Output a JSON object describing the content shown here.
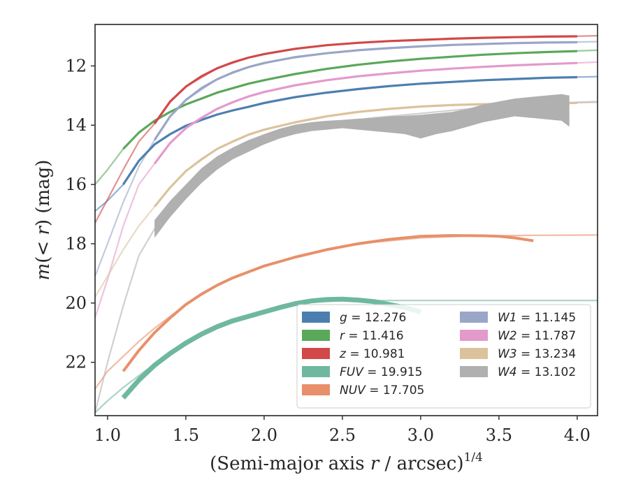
{
  "chart_data": {
    "type": "line",
    "xlabel_html": "(Semi-major axis r / arcsec)",
    "xlabel_parts": {
      "pre": "(Semi-major axis ",
      "var": "r",
      "post": " / arcsec)",
      "sup": "1/4"
    },
    "ylabel_parts": {
      "pre": "m(< r) (mag)"
    },
    "xlim": [
      0.92,
      4.13
    ],
    "ylim": [
      23.8,
      10.6
    ],
    "y_inverted": true,
    "xticks": [
      1.0,
      1.5,
      2.0,
      2.5,
      3.0,
      3.5,
      4.0
    ],
    "xtick_labels": [
      "1.0",
      "1.5",
      "2.0",
      "2.5",
      "3.0",
      "3.5",
      "4.0"
    ],
    "yticks": [
      12,
      14,
      16,
      18,
      20,
      22
    ],
    "ytick_labels": [
      "12",
      "14",
      "16",
      "18",
      "20",
      "22"
    ],
    "grid": false,
    "legend_position": "lower-right",
    "series": [
      {
        "name": "g",
        "label": "g = 12.276",
        "color": "#4c7fb0",
        "data": {
          "x": [
            1.1,
            1.2,
            1.3,
            1.4,
            1.5,
            1.6,
            1.7,
            1.8,
            1.9,
            2.0,
            2.2,
            2.4,
            2.6,
            2.8,
            3.0,
            3.2,
            3.4,
            3.6,
            3.8,
            4.0
          ],
          "y": [
            16.0,
            15.2,
            14.65,
            14.3,
            14.02,
            13.82,
            13.64,
            13.5,
            13.38,
            13.25,
            13.05,
            12.9,
            12.78,
            12.68,
            12.6,
            12.54,
            12.48,
            12.44,
            12.4,
            12.38
          ]
        },
        "model": {
          "x": [
            0.92,
            1.0,
            1.1,
            1.2,
            1.3,
            1.4,
            1.5,
            1.7,
            1.9,
            2.1,
            2.4,
            2.7,
            3.0,
            3.3,
            3.6,
            3.9,
            4.13
          ],
          "y": [
            16.9,
            16.55,
            16.0,
            15.2,
            14.65,
            14.3,
            14.02,
            13.64,
            13.38,
            13.15,
            12.9,
            12.74,
            12.6,
            12.5,
            12.44,
            12.39,
            12.36
          ]
        }
      },
      {
        "name": "r",
        "label": "r = 11.416",
        "color": "#5aa85a",
        "data": {
          "x": [
            1.1,
            1.2,
            1.3,
            1.4,
            1.5,
            1.6,
            1.7,
            1.8,
            1.9,
            2.0,
            2.2,
            2.4,
            2.6,
            2.8,
            3.0,
            3.2,
            3.4,
            3.6,
            3.8,
            4.0
          ],
          "y": [
            14.8,
            14.25,
            13.85,
            13.55,
            13.3,
            13.1,
            12.9,
            12.75,
            12.6,
            12.48,
            12.27,
            12.1,
            11.96,
            11.85,
            11.76,
            11.69,
            11.62,
            11.57,
            11.53,
            11.5
          ]
        },
        "model": {
          "x": [
            0.92,
            1.0,
            1.1,
            1.2,
            1.3,
            1.4,
            1.5,
            1.7,
            1.9,
            2.1,
            2.4,
            2.7,
            3.0,
            3.3,
            3.6,
            3.9,
            4.13
          ],
          "y": [
            16.0,
            15.5,
            14.8,
            14.25,
            13.85,
            13.55,
            13.3,
            12.9,
            12.6,
            12.38,
            12.1,
            11.9,
            11.76,
            11.65,
            11.57,
            11.51,
            11.47
          ]
        }
      },
      {
        "name": "z",
        "label": "z = 10.981",
        "color": "#d24848",
        "data": {
          "x": [
            1.3,
            1.4,
            1.5,
            1.6,
            1.7,
            1.8,
            1.9,
            2.0,
            2.2,
            2.4,
            2.6,
            2.8,
            3.0,
            3.2,
            3.4,
            3.6,
            3.8,
            4.0
          ],
          "y": [
            13.95,
            13.2,
            12.7,
            12.35,
            12.08,
            11.88,
            11.72,
            11.6,
            11.42,
            11.3,
            11.22,
            11.16,
            11.12,
            11.08,
            11.05,
            11.03,
            11.01,
            11.0
          ]
        },
        "model": {
          "x": [
            0.92,
            1.0,
            1.1,
            1.2,
            1.3,
            1.4,
            1.5,
            1.7,
            1.9,
            2.1,
            2.4,
            2.7,
            3.0,
            3.3,
            3.6,
            3.9,
            4.13
          ],
          "y": [
            17.3,
            16.5,
            15.5,
            14.55,
            13.95,
            13.2,
            12.7,
            12.08,
            11.72,
            11.5,
            11.3,
            11.18,
            11.12,
            11.06,
            11.03,
            11.01,
            10.98
          ]
        }
      },
      {
        "name": "FUV",
        "label": "FUV = 19.915",
        "color": "#6fb8a0",
        "data": {
          "x": [
            1.1,
            1.2,
            1.3,
            1.4,
            1.5,
            1.6,
            1.7,
            1.8,
            1.9,
            2.0,
            2.1,
            2.2,
            2.3,
            2.4,
            2.5,
            2.6,
            2.7,
            2.8,
            2.9,
            3.0
          ],
          "y": [
            23.2,
            22.6,
            22.1,
            21.7,
            21.35,
            21.05,
            20.8,
            20.6,
            20.45,
            20.3,
            20.15,
            20.02,
            19.93,
            19.88,
            19.87,
            19.9,
            19.95,
            20.05,
            20.15,
            20.3
          ]
        },
        "model": {
          "x": [
            0.92,
            1.0,
            1.1,
            1.2,
            1.3,
            1.4,
            1.5,
            1.7,
            1.9,
            2.1,
            2.3,
            2.5,
            2.7,
            3.0,
            3.3,
            3.6,
            3.9,
            4.13
          ],
          "y": [
            23.7,
            23.3,
            22.85,
            22.45,
            22.05,
            21.7,
            21.35,
            20.8,
            20.45,
            20.15,
            19.98,
            19.92,
            19.915,
            19.915,
            19.915,
            19.915,
            19.915,
            19.915
          ]
        }
      },
      {
        "name": "NUV",
        "label": "NUV = 17.705",
        "color": "#e8906a",
        "data": {
          "x": [
            1.1,
            1.2,
            1.3,
            1.4,
            1.5,
            1.6,
            1.7,
            1.8,
            1.9,
            2.0,
            2.2,
            2.4,
            2.6,
            2.8,
            3.0,
            3.2,
            3.4,
            3.5,
            3.6,
            3.72
          ],
          "y": [
            22.3,
            21.6,
            21.0,
            20.5,
            20.05,
            19.7,
            19.4,
            19.15,
            18.95,
            18.75,
            18.45,
            18.2,
            18.0,
            17.85,
            17.75,
            17.72,
            17.73,
            17.75,
            17.8,
            17.9
          ]
        },
        "model": {
          "x": [
            0.92,
            1.0,
            1.1,
            1.2,
            1.3,
            1.4,
            1.5,
            1.7,
            1.9,
            2.1,
            2.3,
            2.5,
            2.7,
            3.0,
            3.3,
            3.6,
            3.9,
            4.13
          ],
          "y": [
            22.9,
            22.3,
            21.8,
            21.3,
            20.85,
            20.45,
            20.05,
            19.4,
            18.95,
            18.6,
            18.32,
            18.1,
            17.95,
            17.8,
            17.74,
            17.72,
            17.71,
            17.705
          ]
        }
      },
      {
        "name": "W1",
        "label": "W1 = 11.145",
        "color": "#9aa6c8",
        "data": {
          "x": [
            1.3,
            1.4,
            1.5,
            1.6,
            1.7,
            1.8,
            1.9,
            2.0,
            2.2,
            2.4,
            2.6,
            2.8,
            3.0,
            3.2,
            3.4,
            3.6,
            3.8,
            4.0
          ],
          "y": [
            14.5,
            13.7,
            13.15,
            12.75,
            12.45,
            12.22,
            12.04,
            11.9,
            11.7,
            11.57,
            11.47,
            11.4,
            11.34,
            11.29,
            11.26,
            11.23,
            11.21,
            11.2
          ]
        },
        "model": {
          "x": [
            0.92,
            1.0,
            1.1,
            1.2,
            1.3,
            1.4,
            1.5,
            1.7,
            1.9,
            2.1,
            2.4,
            2.7,
            3.0,
            3.3,
            3.6,
            3.9,
            4.13
          ],
          "y": [
            19.1,
            18.0,
            16.6,
            15.4,
            14.5,
            13.7,
            13.15,
            12.45,
            12.04,
            11.8,
            11.57,
            11.43,
            11.34,
            11.27,
            11.23,
            11.2,
            11.18
          ]
        }
      },
      {
        "name": "W2",
        "label": "W2 = 11.787",
        "color": "#e39acb",
        "data": {
          "x": [
            1.3,
            1.4,
            1.5,
            1.6,
            1.7,
            1.8,
            1.9,
            2.0,
            2.2,
            2.4,
            2.6,
            2.8,
            3.0,
            3.2,
            3.4,
            3.6,
            3.8,
            4.0
          ],
          "y": [
            15.3,
            14.6,
            14.1,
            13.75,
            13.45,
            13.22,
            13.03,
            12.88,
            12.65,
            12.48,
            12.35,
            12.25,
            12.16,
            12.09,
            12.03,
            11.98,
            11.94,
            11.9
          ]
        },
        "model": {
          "x": [
            0.92,
            1.0,
            1.1,
            1.2,
            1.3,
            1.4,
            1.5,
            1.7,
            1.9,
            2.1,
            2.4,
            2.7,
            3.0,
            3.3,
            3.6,
            3.9,
            4.13
          ],
          "y": [
            20.5,
            19.2,
            17.4,
            16.0,
            15.3,
            14.6,
            14.1,
            13.45,
            13.03,
            12.75,
            12.48,
            12.3,
            12.16,
            12.06,
            11.98,
            11.92,
            11.87
          ]
        }
      },
      {
        "name": "W3",
        "label": "W3 = 13.234",
        "color": "#dcc29c",
        "data": {
          "x": [
            1.3,
            1.4,
            1.5,
            1.6,
            1.7,
            1.8,
            1.9,
            2.0,
            2.2,
            2.4,
            2.6,
            2.8,
            3.0,
            3.2,
            3.4,
            3.6,
            3.8,
            4.0
          ],
          "y": [
            16.75,
            16.1,
            15.55,
            15.15,
            14.8,
            14.55,
            14.32,
            14.15,
            13.9,
            13.7,
            13.55,
            13.45,
            13.37,
            13.32,
            13.29,
            13.27,
            13.26,
            13.25
          ]
        },
        "model": {
          "x": [
            0.92,
            1.0,
            1.1,
            1.2,
            1.3,
            1.4,
            1.5,
            1.7,
            1.9,
            2.1,
            2.4,
            2.7,
            3.0,
            3.3,
            3.6,
            3.9,
            4.13
          ],
          "y": [
            19.8,
            19.1,
            18.2,
            17.4,
            16.75,
            16.1,
            15.55,
            14.8,
            14.32,
            14.02,
            13.7,
            13.5,
            13.37,
            13.3,
            13.27,
            13.25,
            13.234
          ]
        }
      },
      {
        "name": "W4",
        "label": "W4 = 13.102",
        "color": "#b0b0b0",
        "band": {
          "x": [
            1.3,
            1.4,
            1.5,
            1.6,
            1.7,
            1.8,
            1.9,
            2.0,
            2.1,
            2.2,
            2.3,
            2.4,
            2.5,
            2.6,
            2.7,
            2.8,
            2.9,
            3.0,
            3.1,
            3.2,
            3.3,
            3.4,
            3.5,
            3.6,
            3.7,
            3.8,
            3.9,
            3.95
          ],
          "lo": [
            17.2,
            16.55,
            16.0,
            15.45,
            15.05,
            14.75,
            14.5,
            14.3,
            14.12,
            13.98,
            13.9,
            13.85,
            13.82,
            13.78,
            13.75,
            13.7,
            13.68,
            13.65,
            13.6,
            13.55,
            13.45,
            13.3,
            13.2,
            13.1,
            13.05,
            13.0,
            12.95,
            13.0
          ],
          "hi": [
            17.8,
            17.1,
            16.5,
            15.95,
            15.5,
            15.15,
            14.9,
            14.65,
            14.45,
            14.3,
            14.2,
            14.15,
            14.1,
            14.15,
            14.2,
            14.25,
            14.3,
            14.45,
            14.3,
            14.2,
            14.05,
            13.9,
            13.8,
            13.7,
            13.75,
            13.8,
            13.85,
            14.05
          ]
        },
        "model": {
          "x": [
            0.92,
            1.0,
            1.1,
            1.2,
            1.3,
            1.4,
            1.5,
            1.7,
            1.9,
            2.1,
            2.4,
            2.7,
            3.0,
            3.3,
            3.6,
            3.9,
            4.13
          ],
          "y": [
            23.7,
            22.0,
            20.1,
            18.4,
            17.5,
            16.8,
            16.2,
            15.25,
            14.7,
            14.3,
            13.95,
            13.75,
            13.6,
            13.45,
            13.33,
            13.25,
            13.2
          ]
        }
      }
    ]
  },
  "legend": {
    "col1": [
      {
        "name": "g",
        "value": "12.276",
        "color": "#4c7fb0"
      },
      {
        "name": "r",
        "value": "11.416",
        "color": "#5aa85a"
      },
      {
        "name": "z",
        "value": "10.981",
        "color": "#d24848"
      },
      {
        "name": "FUV",
        "value": "19.915",
        "color": "#6fb8a0"
      },
      {
        "name": "NUV",
        "value": "17.705",
        "color": "#e8906a"
      }
    ],
    "col2": [
      {
        "name": "W1",
        "value": "11.145",
        "color": "#9aa6c8"
      },
      {
        "name": "W2",
        "value": "11.787",
        "color": "#e39acb"
      },
      {
        "name": "W3",
        "value": "13.234",
        "color": "#dcc29c"
      },
      {
        "name": "W4",
        "value": "13.102",
        "color": "#b0b0b0"
      }
    ]
  }
}
